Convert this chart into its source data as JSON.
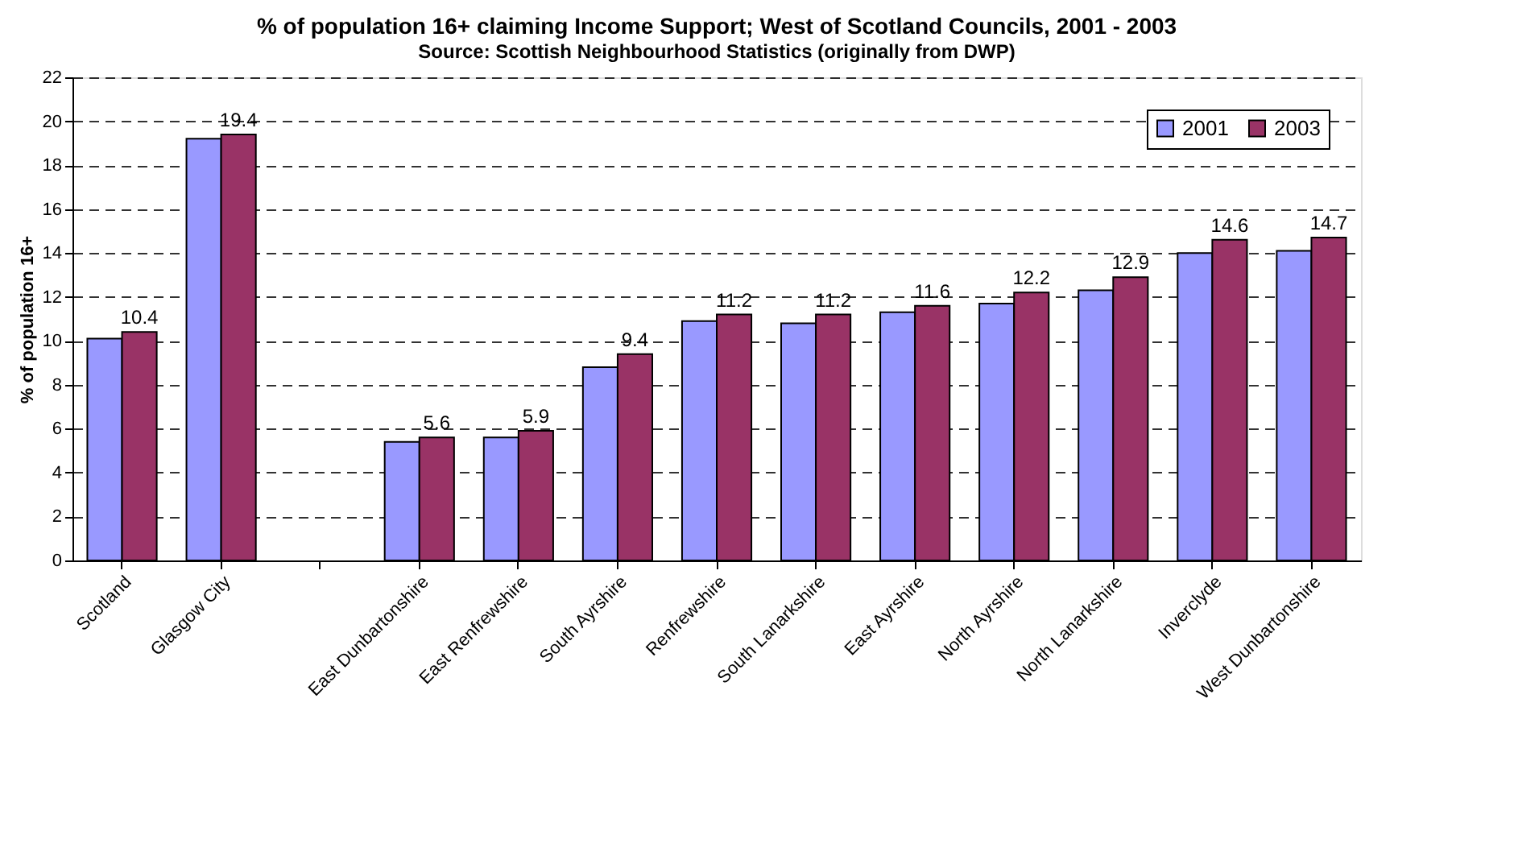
{
  "chart_data": {
    "type": "bar",
    "title": "% of population 16+ claiming Income Support; West of Scotland Councils, 2001 - 2003",
    "subtitle": "Source: Scottish Neighbourhood Statistics (originally from DWP)",
    "ylabel": "% of population 16+",
    "categories": [
      "Scotland",
      "Glasgow City",
      null,
      "East Dunbartonshire",
      "East Renfrewshire",
      "South Ayrshire",
      "Renfrewshire",
      "South Lanarkshire",
      "East Ayrshire",
      "North Ayrshire",
      "North Lanarkshire",
      "Inverclyde",
      "West Dunbartonshire"
    ],
    "series": [
      {
        "name": "2001",
        "color": "#9999ff",
        "values": [
          10.1,
          19.2,
          null,
          5.4,
          5.6,
          8.8,
          10.9,
          10.8,
          11.3,
          11.7,
          12.3,
          14.0,
          14.1
        ]
      },
      {
        "name": "2003",
        "color": "#993366",
        "values": [
          10.4,
          19.4,
          null,
          5.6,
          5.9,
          9.4,
          11.2,
          11.2,
          11.6,
          12.2,
          12.9,
          14.6,
          14.7
        ],
        "value_labels": [
          "10.4",
          "19.4",
          null,
          "5.6",
          "5.9",
          "9.4",
          "11.2",
          "11.2",
          "11.6",
          "12.2",
          "12.9",
          "14.6",
          "14.7"
        ]
      }
    ],
    "ylim": [
      0,
      22
    ],
    "yticks": [
      0,
      2,
      4,
      6,
      8,
      10,
      12,
      14,
      16,
      18,
      20,
      22
    ],
    "grid": "y",
    "legend": "top right"
  }
}
